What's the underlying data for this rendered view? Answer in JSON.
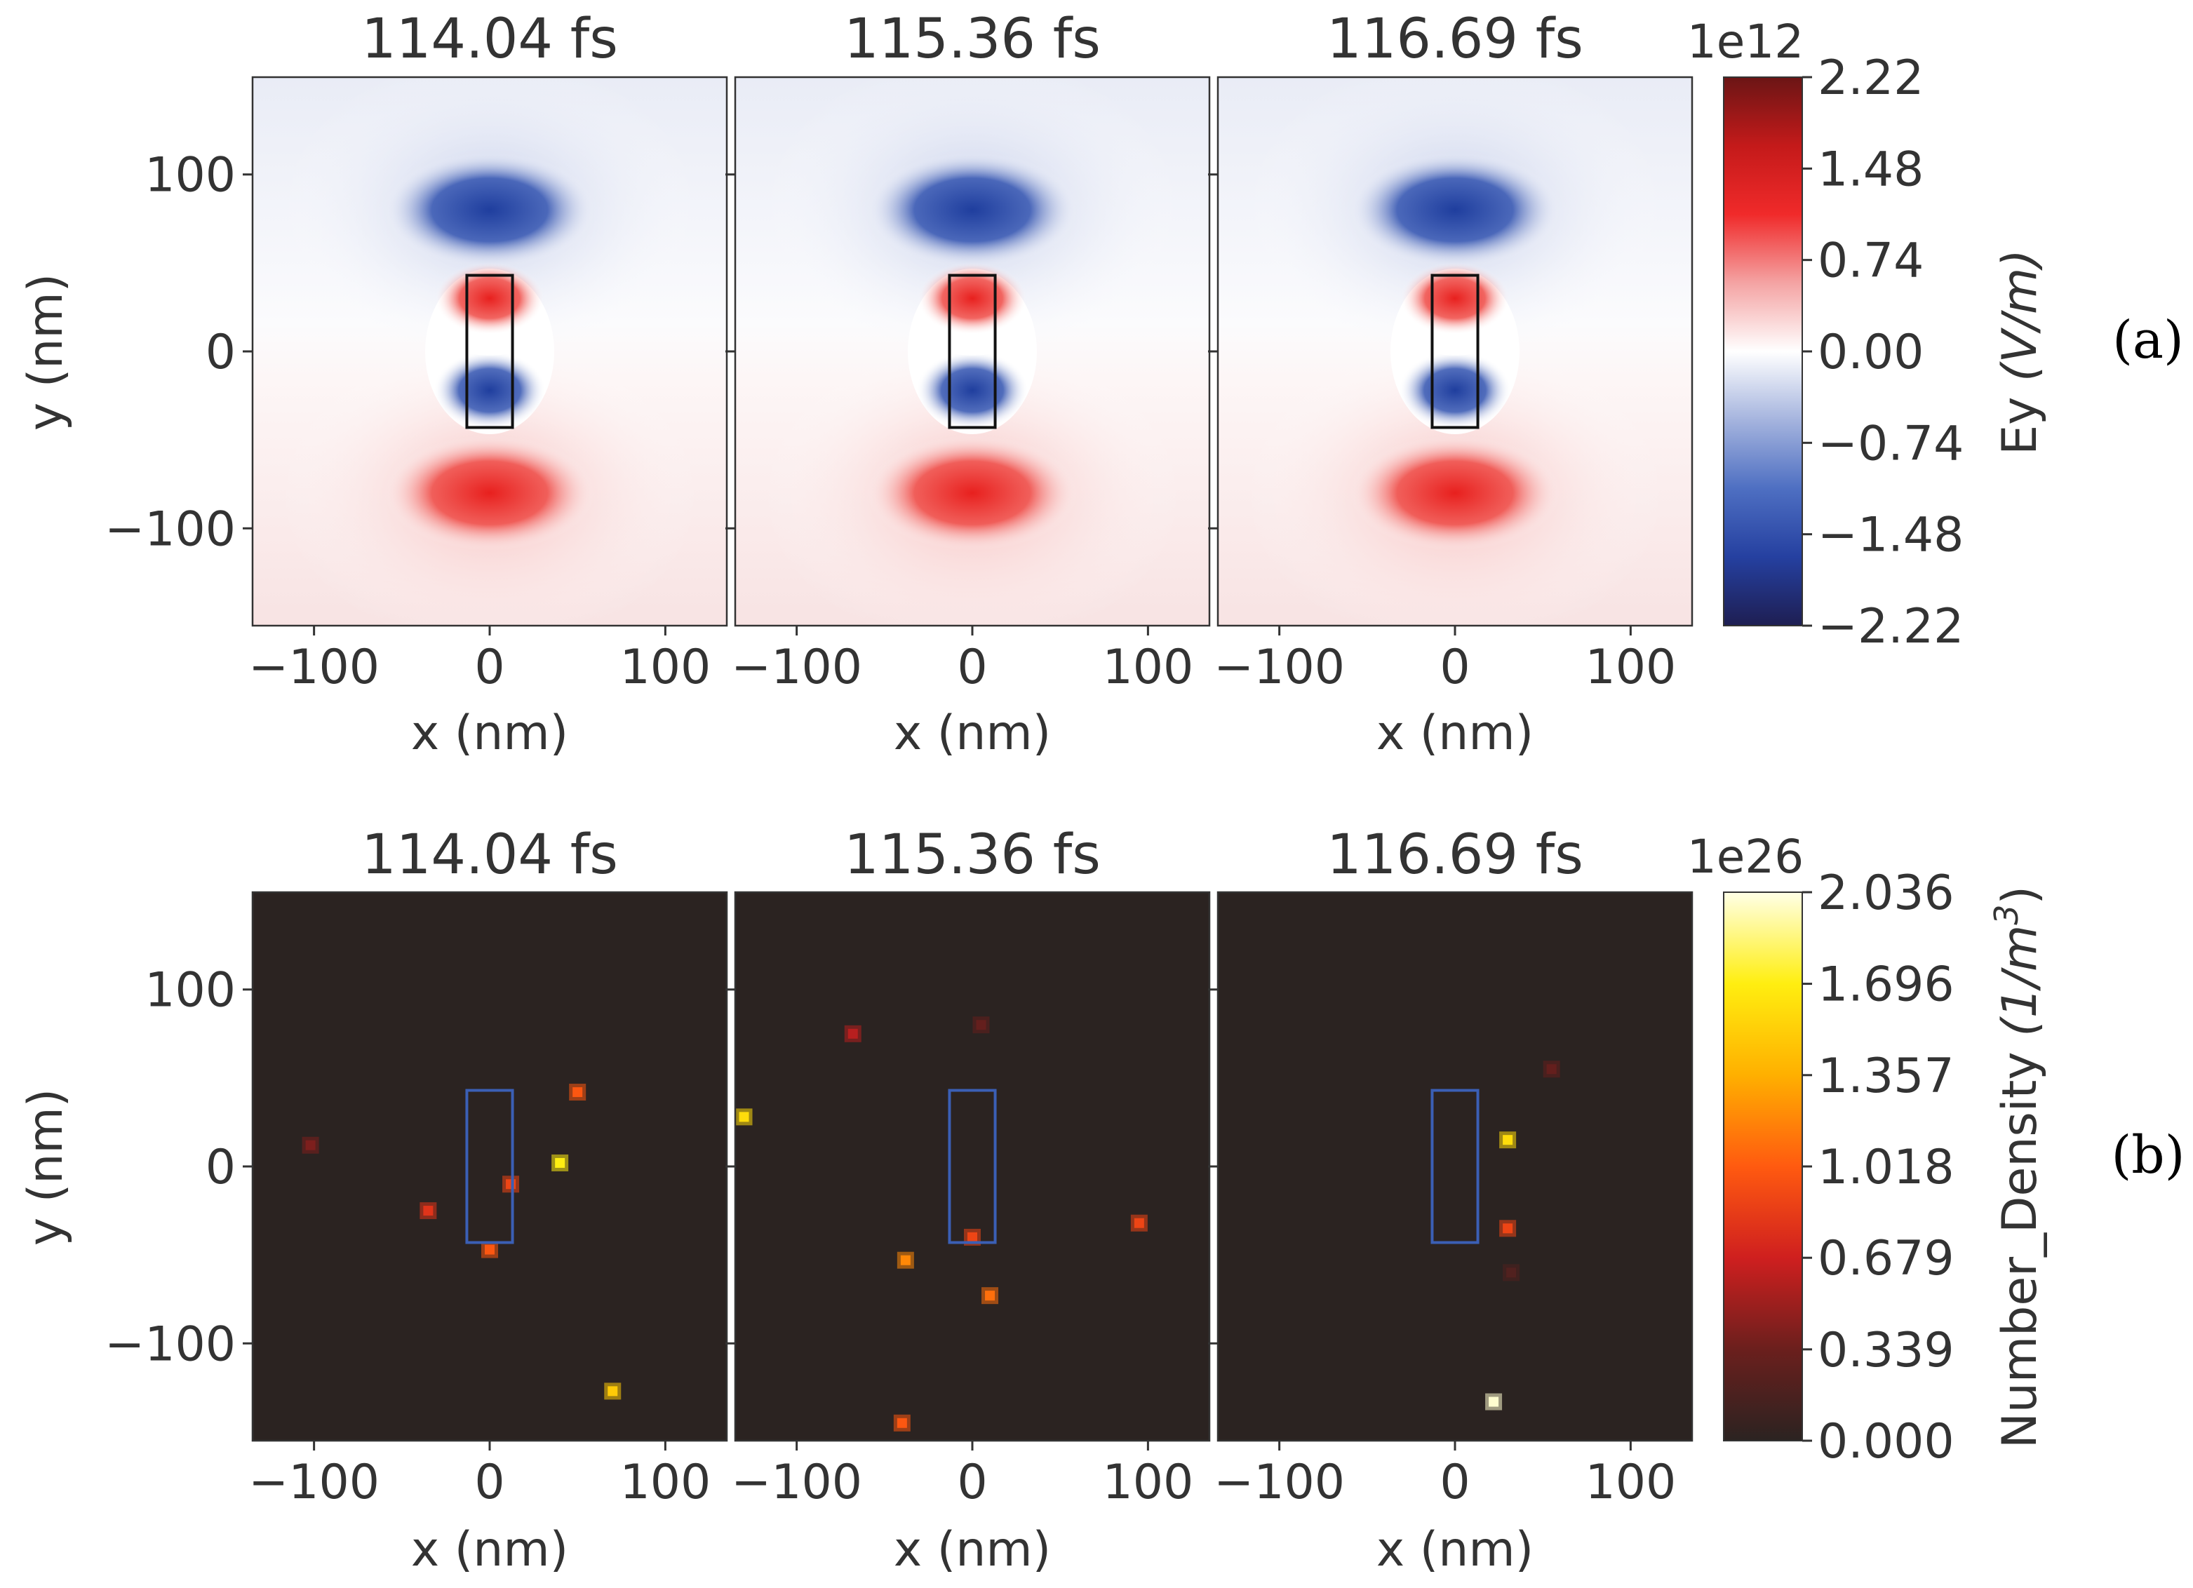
{
  "figure": {
    "colors": {
      "cb_ey": [
        "#1e1e52",
        "#2540a0",
        "#4e6fc2",
        "#a5b4de",
        "#ffffff",
        "#f4a3a3",
        "#f02a2a",
        "#c41a1a",
        "#6b1515"
      ],
      "cb_density": [
        "#2b2321",
        "#6b1f1d",
        "#cf1f1f",
        "#ff5a10",
        "#ffb000",
        "#ffee10",
        "#ffffe6"
      ],
      "ey_pos": "#e8201e",
      "ey_neg": "#1f3e9e",
      "density_bg": "#2b2321",
      "rod_top": "#111111",
      "rod_bottom": "#3b5fb5"
    }
  },
  "chart_data": [
    {
      "panel_label": "(a)",
      "type": "heatmap",
      "quantity": "Ey",
      "titles": [
        "114.04 fs",
        "115.36 fs",
        "116.69 fs"
      ],
      "xlabel": "x (nm)",
      "ylabel": "y (nm)",
      "xlim": [
        -135,
        135
      ],
      "ylim": [
        -155,
        155
      ],
      "xticks": [
        -100,
        0,
        100
      ],
      "xtick_labels": [
        "−100",
        "0",
        "100"
      ],
      "yticks": [
        100,
        0,
        -100
      ],
      "ytick_labels": [
        "100",
        "0",
        "−100"
      ],
      "colorbar": {
        "label_prefix": "Ey ",
        "label_unit": "(V/m)",
        "offset_text": "1e12",
        "ticks": [
          2.22,
          1.48,
          0.74,
          0.0,
          -0.74,
          -1.48,
          -2.22
        ],
        "tick_labels": [
          "2.22",
          "1.48",
          "0.74",
          "0.00",
          "−0.74",
          "−1.48",
          "−2.22"
        ],
        "range": [
          -2.22,
          2.22
        ]
      },
      "nanorod": {
        "x": [
          -13,
          13
        ],
        "y": [
          -43,
          43
        ]
      },
      "field_lobes": [
        {
          "x": 0,
          "y": 80,
          "value": -1.8
        },
        {
          "x": 0,
          "y": -80,
          "value": 1.5
        },
        {
          "x": 0,
          "y": 30,
          "value": 1.3
        },
        {
          "x": 0,
          "y": -22,
          "value": -1.8
        }
      ]
    },
    {
      "panel_label": "(b)",
      "type": "heatmap",
      "quantity": "Number_Density",
      "titles": [
        "114.04 fs",
        "115.36 fs",
        "116.69 fs"
      ],
      "xlabel": "x (nm)",
      "ylabel": "y (nm)",
      "xlim": [
        -135,
        135
      ],
      "ylim": [
        -155,
        155
      ],
      "xticks": [
        -100,
        0,
        100
      ],
      "xtick_labels": [
        "−100",
        "0",
        "100"
      ],
      "yticks": [
        100,
        0,
        -100
      ],
      "ytick_labels": [
        "100",
        "0",
        "−100"
      ],
      "colorbar": {
        "label_prefix": "Number_Density ",
        "label_unit": "(1/m",
        "label_exp": "3",
        "label_end": ")",
        "offset_text": "1e26",
        "ticks": [
          2.036,
          1.696,
          1.357,
          1.018,
          0.679,
          0.339,
          0.0
        ],
        "tick_labels": [
          "2.036",
          "1.696",
          "1.357",
          "1.018",
          "0.679",
          "0.339",
          "0.000"
        ],
        "range": [
          0,
          2.036
        ]
      },
      "nanorod": {
        "x": [
          -13,
          13
        ],
        "y": [
          -43,
          43
        ]
      },
      "points": [
        [
          {
            "x": -102,
            "y": 12,
            "value": 0.4
          },
          {
            "x": 50,
            "y": 42,
            "value": 1.0
          },
          {
            "x": 40,
            "y": 2,
            "value": 1.7
          },
          {
            "x": 12,
            "y": -10,
            "value": 0.9
          },
          {
            "x": -35,
            "y": -25,
            "value": 0.8
          },
          {
            "x": 0,
            "y": -47,
            "value": 1.0
          },
          {
            "x": 70,
            "y": -127,
            "value": 1.5
          }
        ],
        [
          {
            "x": -130,
            "y": 28,
            "value": 1.6
          },
          {
            "x": -68,
            "y": 75,
            "value": 0.6
          },
          {
            "x": 5,
            "y": 80,
            "value": 0.3
          },
          {
            "x": 0,
            "y": -40,
            "value": 0.9
          },
          {
            "x": -38,
            "y": -53,
            "value": 1.2
          },
          {
            "x": 10,
            "y": -73,
            "value": 1.1
          },
          {
            "x": 95,
            "y": -32,
            "value": 0.9
          },
          {
            "x": -40,
            "y": -145,
            "value": 1.0
          }
        ],
        [
          {
            "x": 55,
            "y": 55,
            "value": 0.3
          },
          {
            "x": 30,
            "y": 15,
            "value": 1.6
          },
          {
            "x": 30,
            "y": -35,
            "value": 0.9
          },
          {
            "x": 32,
            "y": -60,
            "value": 0.2
          },
          {
            "x": 22,
            "y": -133,
            "value": 2.0
          }
        ]
      ]
    }
  ]
}
